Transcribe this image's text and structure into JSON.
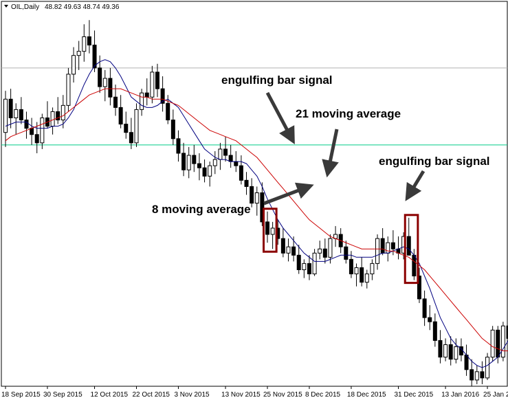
{
  "header": {
    "symbol": "OIL,Daily",
    "ohlc": "48.82 49.63 48.74 49.36"
  },
  "chart_data": {
    "type": "candlestick",
    "title": "",
    "ylim": [
      33,
      51.5
    ],
    "x_tick_labels": [
      "18 Sep 2015",
      "30 Sep 2015",
      "12 Oct 2015",
      "22 Oct 2015",
      "3 Nov 2015",
      "13 Nov 2015",
      "25 Nov 2015",
      "8 Dec 2015",
      "18 Dec 2015",
      "31 Dec 2015",
      "13 Jan 2016",
      "25 Jan 2"
    ],
    "x_tick_bar_index": [
      0,
      8,
      17,
      25,
      33,
      42,
      50,
      58,
      66,
      75,
      84,
      92
    ],
    "horizontal_lines": [
      {
        "name": "grey-level",
        "value": 48.3,
        "color": "#b0b0b0"
      },
      {
        "name": "green-level",
        "value": 44.6,
        "color": "#00cc88"
      }
    ],
    "candles": [
      [
        45.2,
        47.2,
        44.5,
        46.8
      ],
      [
        46.8,
        47.3,
        45.4,
        45.9
      ],
      [
        45.9,
        46.6,
        45.1,
        46.3
      ],
      [
        46.3,
        46.9,
        45.6,
        45.8
      ],
      [
        45.8,
        46.2,
        44.9,
        45.4
      ],
      [
        45.4,
        45.9,
        44.6,
        45.1
      ],
      [
        45.1,
        45.7,
        44.2,
        44.7
      ],
      [
        44.7,
        46.1,
        44.4,
        45.9
      ],
      [
        45.9,
        46.7,
        45.4,
        45.5
      ],
      [
        45.5,
        46.4,
        45.1,
        46.2
      ],
      [
        46.2,
        46.9,
        45.6,
        45.8
      ],
      [
        45.8,
        47.0,
        45.4,
        46.5
      ],
      [
        46.5,
        48.3,
        46.2,
        48.0
      ],
      [
        48.0,
        49.3,
        47.6,
        48.9
      ],
      [
        48.9,
        49.6,
        48.2,
        49.1
      ],
      [
        49.1,
        50.4,
        48.6,
        49.8
      ],
      [
        49.8,
        50.6,
        49.0,
        49.4
      ],
      [
        49.4,
        50.1,
        48.1,
        48.3
      ],
      [
        48.3,
        48.9,
        47.1,
        47.4
      ],
      [
        47.4,
        48.2,
        46.7,
        47.8
      ],
      [
        47.8,
        48.3,
        46.5,
        46.9
      ],
      [
        46.9,
        47.5,
        46.0,
        46.4
      ],
      [
        46.4,
        47.0,
        45.4,
        45.6
      ],
      [
        45.6,
        46.2,
        44.9,
        45.2
      ],
      [
        45.2,
        45.9,
        44.4,
        44.7
      ],
      [
        44.7,
        46.6,
        44.5,
        46.3
      ],
      [
        46.3,
        47.3,
        46.0,
        47.1
      ],
      [
        47.1,
        47.8,
        46.5,
        46.9
      ],
      [
        46.9,
        48.4,
        46.6,
        48.1
      ],
      [
        48.1,
        48.5,
        46.9,
        47.3
      ],
      [
        47.3,
        47.9,
        46.2,
        46.6
      ],
      [
        46.6,
        47.0,
        45.6,
        45.8
      ],
      [
        45.8,
        46.3,
        44.6,
        44.9
      ],
      [
        44.9,
        45.3,
        43.8,
        44.2
      ],
      [
        44.2,
        44.7,
        43.1,
        43.4
      ],
      [
        43.4,
        44.5,
        43.0,
        44.1
      ],
      [
        44.1,
        44.6,
        43.3,
        43.7
      ],
      [
        43.7,
        44.2,
        42.9,
        43.5
      ],
      [
        43.5,
        43.9,
        42.8,
        43.1
      ],
      [
        43.1,
        43.8,
        42.6,
        43.6
      ],
      [
        43.6,
        44.3,
        43.2,
        43.9
      ],
      [
        43.9,
        44.7,
        43.4,
        44.4
      ],
      [
        44.4,
        45.0,
        43.8,
        44.1
      ],
      [
        44.1,
        44.6,
        43.5,
        43.8
      ],
      [
        43.8,
        44.3,
        43.3,
        43.6
      ],
      [
        43.6,
        44.1,
        42.7,
        42.9
      ],
      [
        42.9,
        43.3,
        42.2,
        42.6
      ],
      [
        42.6,
        43.0,
        41.6,
        41.8
      ],
      [
        41.8,
        42.6,
        41.2,
        42.3
      ],
      [
        42.3,
        42.8,
        40.7,
        40.9
      ],
      [
        40.9,
        41.4,
        39.9,
        40.3
      ],
      [
        40.3,
        40.9,
        39.6,
        40.6
      ],
      [
        40.6,
        41.0,
        39.8,
        40.1
      ],
      [
        40.1,
        40.6,
        39.2,
        39.4
      ],
      [
        39.4,
        40.1,
        39.0,
        39.7
      ],
      [
        39.7,
        40.2,
        39.0,
        39.3
      ],
      [
        39.3,
        39.8,
        38.4,
        38.6
      ],
      [
        38.6,
        39.1,
        38.2,
        38.9
      ],
      [
        38.9,
        39.3,
        38.1,
        38.4
      ],
      [
        38.4,
        39.6,
        38.3,
        39.4
      ],
      [
        39.4,
        40.0,
        39.1,
        39.6
      ],
      [
        39.6,
        40.1,
        38.9,
        39.2
      ],
      [
        39.2,
        40.3,
        38.9,
        40.1
      ],
      [
        40.1,
        40.7,
        39.7,
        40.3
      ],
      [
        40.3,
        40.6,
        39.4,
        39.7
      ],
      [
        39.7,
        40.0,
        38.9,
        39.1
      ],
      [
        39.1,
        39.5,
        38.2,
        38.4
      ],
      [
        38.4,
        38.9,
        37.8,
        38.7
      ],
      [
        38.7,
        39.2,
        37.8,
        38.0
      ],
      [
        38.0,
        38.6,
        37.7,
        38.4
      ],
      [
        38.4,
        39.1,
        38.1,
        38.9
      ],
      [
        38.9,
        40.3,
        38.6,
        40.1
      ],
      [
        40.1,
        40.6,
        39.3,
        39.4
      ],
      [
        39.4,
        40.2,
        39.0,
        39.9
      ],
      [
        39.9,
        40.5,
        39.3,
        39.6
      ],
      [
        39.6,
        40.2,
        39.1,
        39.4
      ],
      [
        39.4,
        40.4,
        39.1,
        40.2
      ],
      [
        40.2,
        41.1,
        39.3,
        39.3
      ],
      [
        39.3,
        39.6,
        38.1,
        38.3
      ],
      [
        38.3,
        38.7,
        37.0,
        37.2
      ],
      [
        37.2,
        37.6,
        35.9,
        36.3
      ],
      [
        36.3,
        36.9,
        35.7,
        36.1
      ],
      [
        36.1,
        36.5,
        34.9,
        35.2
      ],
      [
        35.2,
        35.7,
        34.1,
        34.4
      ],
      [
        34.4,
        35.3,
        34.2,
        35.0
      ],
      [
        35.0,
        35.4,
        34.0,
        34.3
      ],
      [
        34.3,
        35.3,
        34.1,
        34.9
      ],
      [
        34.9,
        35.3,
        34.2,
        34.5
      ],
      [
        34.5,
        35.0,
        33.5,
        33.8
      ],
      [
        33.8,
        34.3,
        33.0,
        33.3
      ],
      [
        33.3,
        34.0,
        33.1,
        33.7
      ],
      [
        33.7,
        34.2,
        33.1,
        33.4
      ],
      [
        33.4,
        34.6,
        33.3,
        34.4
      ],
      [
        34.4,
        35.9,
        34.2,
        35.7
      ],
      [
        35.7,
        35.9,
        34.1,
        34.4
      ],
      [
        34.4,
        36.1,
        34.2,
        35.9
      ],
      [
        35.9,
        36.6,
        35.1,
        35.3
      ],
      [
        35.3,
        37.6,
        35.1,
        37.3
      ],
      [
        37.3,
        38.1,
        36.6,
        37.0
      ]
    ],
    "series": [
      {
        "name": "8 moving average",
        "color": "#000080",
        "values": [
          45.5,
          45.6,
          45.7,
          45.7,
          45.7,
          45.5,
          45.4,
          45.4,
          45.4,
          45.5,
          45.5,
          45.6,
          45.9,
          46.3,
          46.9,
          47.5,
          48.0,
          48.4,
          48.6,
          48.7,
          48.6,
          48.3,
          47.9,
          47.4,
          46.9,
          46.7,
          46.5,
          46.4,
          46.4,
          46.5,
          46.7,
          46.8,
          46.6,
          46.4,
          46.0,
          45.6,
          45.2,
          44.8,
          44.4,
          44.2,
          44.0,
          43.9,
          43.9,
          43.8,
          43.8,
          43.8,
          43.7,
          43.4,
          43.1,
          42.6,
          42.0,
          41.5,
          41.0,
          40.6,
          40.3,
          40.0,
          39.7,
          39.4,
          39.2,
          39.0,
          39.0,
          39.0,
          39.1,
          39.2,
          39.3,
          39.3,
          39.3,
          39.2,
          39.2,
          39.2,
          39.2,
          39.3,
          39.4,
          39.4,
          39.5,
          39.6,
          39.7,
          39.6,
          39.3,
          38.9,
          38.3,
          37.7,
          37.0,
          36.3,
          35.8,
          35.3,
          35.0,
          34.8,
          34.5,
          34.2,
          34.0,
          33.9,
          34.0,
          34.2,
          34.4,
          34.8,
          35.2,
          35.6
        ]
      },
      {
        "name": "21 moving average",
        "color": "#cc0000",
        "values": [
          44.8,
          45.0,
          45.1,
          45.2,
          45.3,
          45.4,
          45.5,
          45.6,
          45.7,
          45.8,
          45.9,
          46.0,
          46.2,
          46.4,
          46.6,
          46.8,
          47.0,
          47.1,
          47.2,
          47.3,
          47.3,
          47.3,
          47.3,
          47.2,
          47.1,
          47.0,
          46.9,
          46.9,
          46.8,
          46.8,
          46.8,
          46.7,
          46.6,
          46.5,
          46.3,
          46.1,
          45.9,
          45.7,
          45.5,
          45.3,
          45.2,
          45.1,
          45.0,
          44.9,
          44.8,
          44.6,
          44.4,
          44.2,
          44.0,
          43.7,
          43.4,
          43.1,
          42.8,
          42.5,
          42.2,
          41.9,
          41.6,
          41.3,
          41.0,
          40.8,
          40.6,
          40.4,
          40.2,
          40.1,
          40.0,
          39.9,
          39.8,
          39.7,
          39.6,
          39.6,
          39.6,
          39.6,
          39.6,
          39.5,
          39.5,
          39.4,
          39.3,
          39.2,
          39.0,
          38.8,
          38.6,
          38.3,
          38.0,
          37.7,
          37.4,
          37.1,
          36.8,
          36.5,
          36.2,
          35.9,
          35.6,
          35.3,
          35.1,
          34.9,
          34.8,
          34.7,
          34.7,
          34.7
        ]
      }
    ],
    "annotations": [
      {
        "text": "engulfing bar signal",
        "target": "box1"
      },
      {
        "text": "21 moving average",
        "target": "red-ma"
      },
      {
        "text": "engulfing bar signal",
        "target": "box2"
      },
      {
        "text": "8 moving average",
        "target": "blue-ma"
      }
    ],
    "highlight_boxes": [
      {
        "from_bar": 50,
        "to_bar": 51,
        "color": "#8b0000"
      },
      {
        "from_bar": 77,
        "to_bar": 78,
        "color": "#8b0000"
      }
    ]
  }
}
